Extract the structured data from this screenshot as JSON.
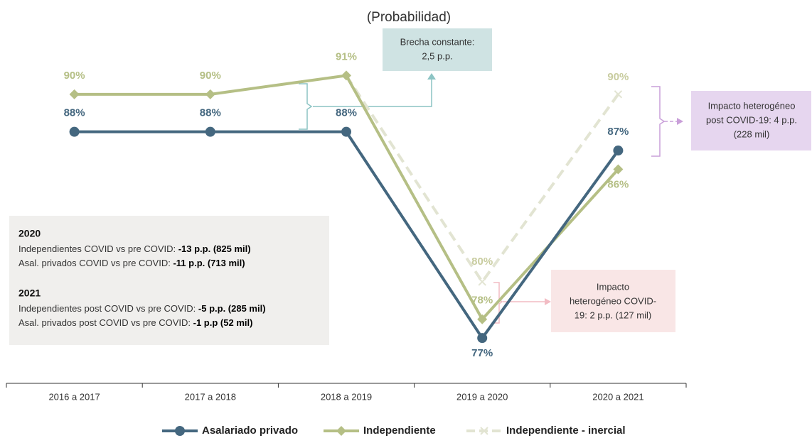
{
  "chart_data": {
    "type": "line",
    "subtitle": "(Probabilidad)",
    "categories": [
      "2016 a 2017",
      "2017 a 2018",
      "2018 a 2019",
      "2019 a 2020",
      "2020 a 2021"
    ],
    "ylim": [
      75,
      92
    ],
    "series": [
      {
        "name": "Asalariado privado",
        "color": "#44677f",
        "marker": "circle",
        "dash": false,
        "values": [
          88,
          88,
          88,
          77,
          87
        ],
        "value_labels": [
          "88%",
          "88%",
          "88%",
          "77%",
          "87%"
        ]
      },
      {
        "name": "Independiente",
        "color": "#b5bf85",
        "marker": "diamond",
        "dash": false,
        "values": [
          90,
          90,
          91,
          78,
          86
        ],
        "value_labels": [
          "90%",
          "90%",
          "91%",
          "78%",
          "86%"
        ]
      },
      {
        "name": "Independiente - inercial",
        "color": "#e2e4d2",
        "marker": "x",
        "dash": true,
        "values": [
          null,
          null,
          91,
          80,
          90
        ],
        "value_labels": [
          null,
          null,
          null,
          "80%",
          "90%"
        ]
      }
    ],
    "annotations": {
      "brecha": [
        "Brecha constante:",
        "2,5 p.p."
      ],
      "post_covid": [
        "Impacto heterogéneo",
        "post COVID-19: 4 p.p.",
        "(228 mil)"
      ],
      "covid": [
        "Impacto",
        "heterogéneo COVID-",
        "19: 2 p.p. (127 mil)"
      ]
    },
    "notes": [
      {
        "heading": "2020",
        "lines": [
          {
            "text": "Independientes COVID vs pre COVID: ",
            "bold": "-13 p.p. (825 mil)"
          },
          {
            "text": "Asal. privados COVID vs pre COVID: ",
            "bold": "-11 p.p. (713 mil)"
          }
        ]
      },
      {
        "heading": "2021",
        "lines": [
          {
            "text": "Independientes post COVID vs pre COVID: ",
            "bold": "-5 p.p. (285 mil)"
          },
          {
            "text": "Asal. privados post COVID vs pre COVID: ",
            "bold": "-1 p.p (52 mil)"
          }
        ]
      }
    ]
  }
}
